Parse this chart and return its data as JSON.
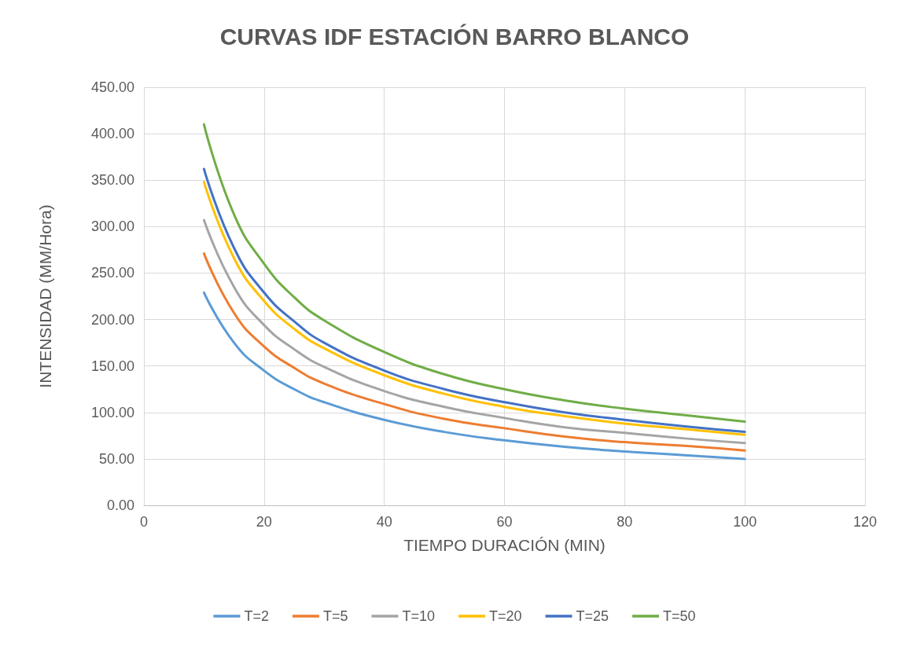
{
  "chart_data": {
    "type": "line",
    "title": "CURVAS IDF ESTACIÓN BARRO BLANCO",
    "xlabel": "TIEMPO DURACIÓN (MIN)",
    "ylabel": "INTENSIDAD (MM/Hora)",
    "x": [
      10,
      15,
      20,
      25,
      30,
      40,
      50,
      60,
      70,
      80,
      90,
      100
    ],
    "series": [
      {
        "name": "T=2",
        "color": "#5b9bd5",
        "values": [
          229,
          175,
          145,
          125,
          111,
          92,
          79,
          70,
          63,
          58,
          54,
          50
        ]
      },
      {
        "name": "T=5",
        "color": "#ed7d31",
        "values": [
          271,
          207,
          171,
          148,
          131,
          109,
          93,
          83,
          74,
          68,
          64,
          59
        ]
      },
      {
        "name": "T=10",
        "color": "#a5a5a5",
        "values": [
          307,
          235,
          194,
          168,
          149,
          123,
          106,
          94,
          84,
          78,
          72,
          67
        ]
      },
      {
        "name": "T=20",
        "color": "#ffc000",
        "values": [
          348,
          266,
          220,
          190,
          169,
          140,
          120,
          106,
          96,
          88,
          82,
          76
        ]
      },
      {
        "name": "T=25",
        "color": "#4472c4",
        "values": [
          362,
          277,
          229,
          198,
          175,
          145,
          125,
          111,
          100,
          92,
          85,
          79
        ]
      },
      {
        "name": "T=50",
        "color": "#70ad47",
        "values": [
          410,
          313,
          260,
          224,
          199,
          165,
          141,
          125,
          113,
          104,
          97,
          90
        ]
      }
    ],
    "xlim": [
      0,
      120
    ],
    "xticks": [
      0,
      20,
      40,
      60,
      80,
      100,
      120
    ],
    "ylim": [
      0,
      450
    ],
    "yticks": [
      {
        "value": 0,
        "label": "0.00"
      },
      {
        "value": 50,
        "label": "50.00"
      },
      {
        "value": 100,
        "label": "100.00"
      },
      {
        "value": 150,
        "label": "150.00"
      },
      {
        "value": 200,
        "label": "200.00"
      },
      {
        "value": 250,
        "label": "250.00"
      },
      {
        "value": 300,
        "label": "300.00"
      },
      {
        "value": 350,
        "label": "350.00"
      },
      {
        "value": 400,
        "label": "400.00"
      },
      {
        "value": 450,
        "label": "450.00"
      }
    ],
    "grid": true,
    "legend": "bottom",
    "marker": "none",
    "line_style": "solid"
  }
}
